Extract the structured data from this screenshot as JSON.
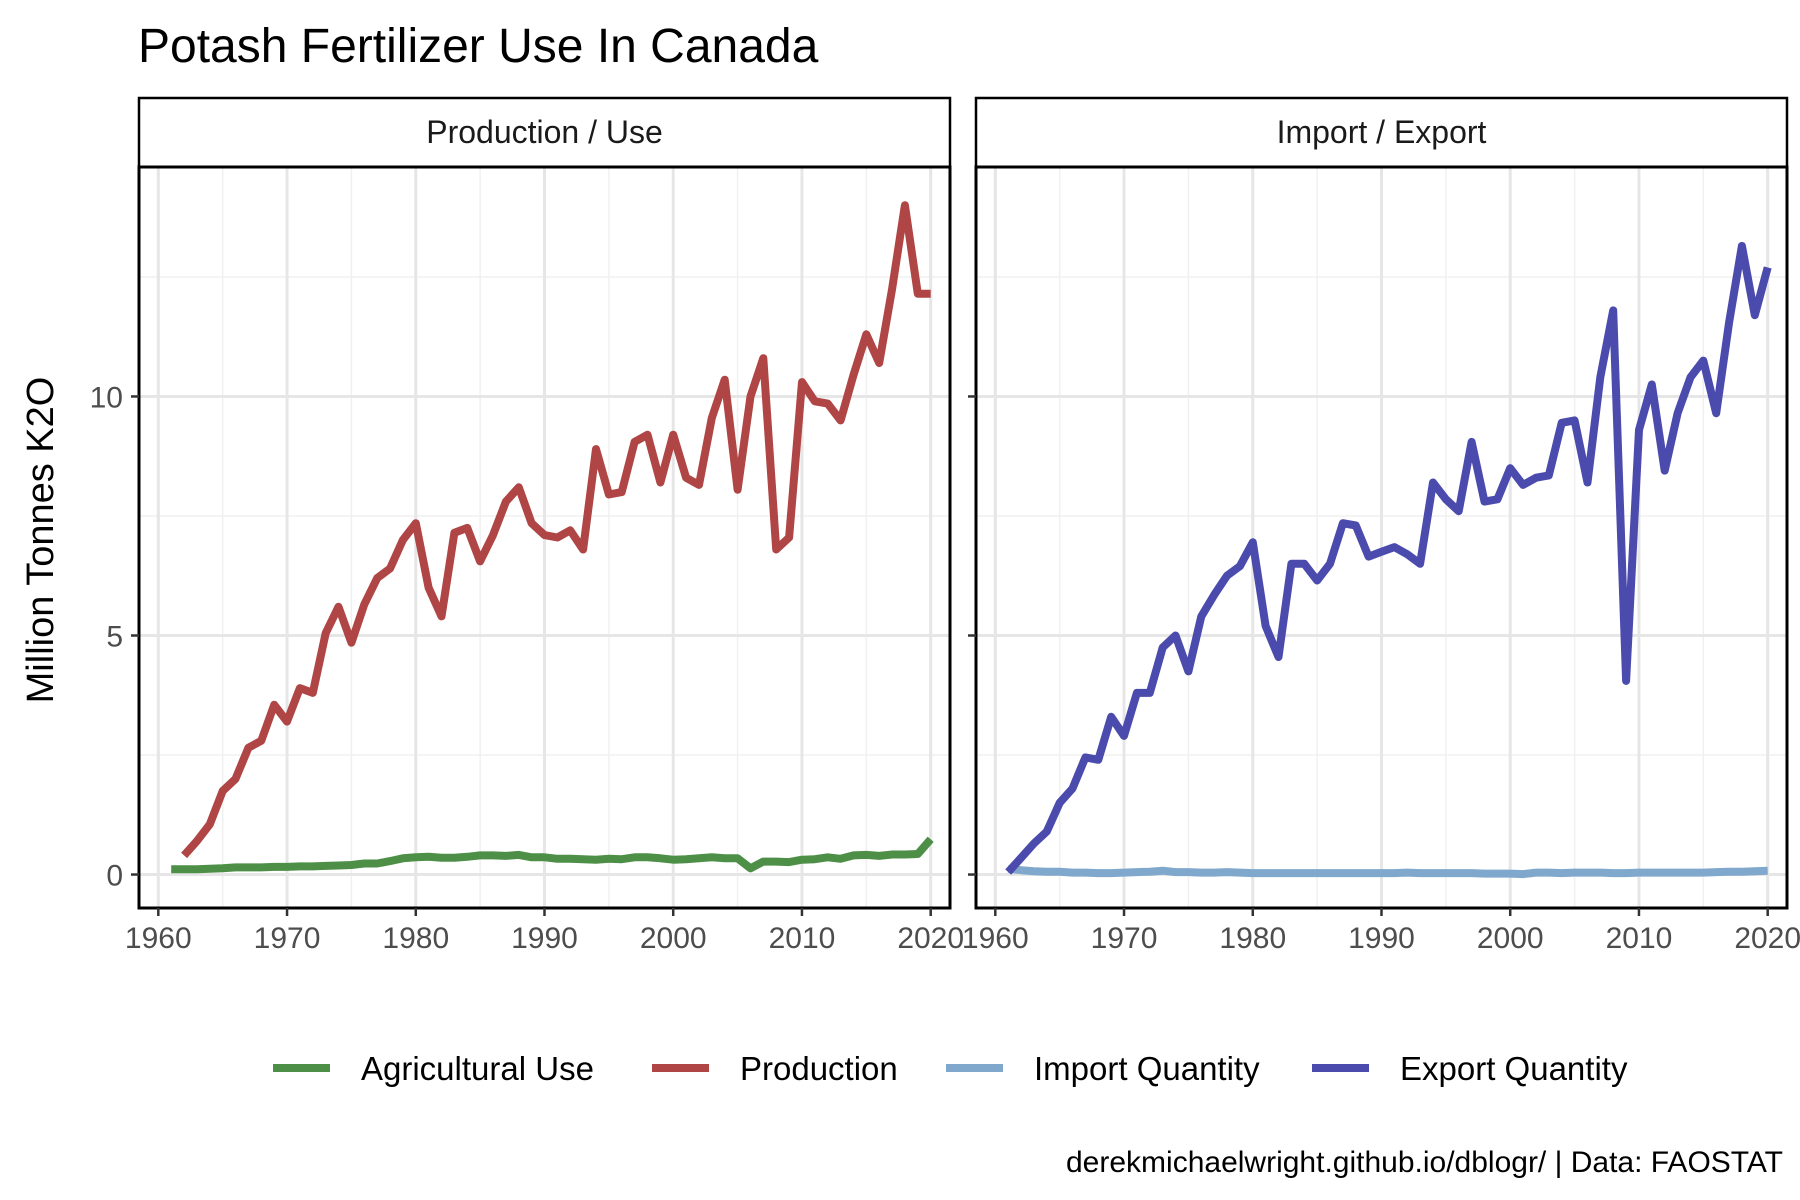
{
  "chart_data": {
    "type": "line",
    "title": "Potash Fertilizer Use In Canada",
    "ylabel": "Million Tonnes K2O",
    "caption": "derekmichaelwright.github.io/dblogr/ | Data: FAOSTAT",
    "xlim": [
      1958.5,
      2021.5
    ],
    "ylim": [
      -0.7,
      14.8
    ],
    "x_ticks": [
      1960,
      1970,
      1980,
      1990,
      2000,
      2010,
      2020
    ],
    "x_tick_labels": [
      "1960",
      "1970",
      "1980",
      "1990",
      "2000",
      "2010",
      "2020"
    ],
    "y_ticks": [
      0,
      5,
      10
    ],
    "y_tick_labels": [
      "0",
      "5",
      "10"
    ],
    "grid": true,
    "legend_position": "bottom",
    "legend": [
      {
        "name": "Agricultural Use",
        "color": "#4d8f47"
      },
      {
        "name": "Production",
        "color": "#b04545"
      },
      {
        "name": "Import Quantity",
        "color": "#7fa8cc"
      },
      {
        "name": "Export Quantity",
        "color": "#4b4bae"
      }
    ],
    "panels": [
      {
        "label": "Production / Use",
        "series": [
          {
            "name": "Agricultural Use",
            "color": "#4d8f47",
            "x": [
              1961,
              1962,
              1963,
              1964,
              1965,
              1966,
              1967,
              1968,
              1969,
              1970,
              1971,
              1972,
              1973,
              1974,
              1975,
              1976,
              1977,
              1978,
              1979,
              1980,
              1981,
              1982,
              1983,
              1984,
              1985,
              1986,
              1987,
              1988,
              1989,
              1990,
              1991,
              1992,
              1993,
              1994,
              1995,
              1996,
              1997,
              1998,
              1999,
              2000,
              2001,
              2002,
              2003,
              2004,
              2005,
              2006,
              2007,
              2008,
              2009,
              2010,
              2011,
              2012,
              2013,
              2014,
              2015,
              2016,
              2017,
              2018,
              2019,
              2020
            ],
            "values": [
              0.11,
              0.11,
              0.11,
              0.12,
              0.13,
              0.15,
              0.15,
              0.15,
              0.16,
              0.16,
              0.17,
              0.17,
              0.18,
              0.19,
              0.2,
              0.23,
              0.23,
              0.28,
              0.34,
              0.36,
              0.37,
              0.35,
              0.35,
              0.37,
              0.4,
              0.4,
              0.39,
              0.41,
              0.36,
              0.36,
              0.33,
              0.33,
              0.32,
              0.31,
              0.33,
              0.32,
              0.36,
              0.36,
              0.34,
              0.31,
              0.32,
              0.34,
              0.36,
              0.34,
              0.34,
              0.13,
              0.27,
              0.27,
              0.26,
              0.31,
              0.32,
              0.36,
              0.33,
              0.4,
              0.41,
              0.39,
              0.42,
              0.42,
              0.43,
              0.74
            ]
          },
          {
            "name": "Production",
            "color": "#b04545",
            "x": [
              1962,
              1963,
              1964,
              1965,
              1966,
              1967,
              1968,
              1969,
              1970,
              1971,
              1972,
              1973,
              1974,
              1975,
              1976,
              1977,
              1978,
              1979,
              1980,
              1981,
              1982,
              1983,
              1984,
              1985,
              1986,
              1987,
              1988,
              1989,
              1990,
              1991,
              1992,
              1993,
              1994,
              1995,
              1996,
              1997,
              1998,
              1999,
              2000,
              2001,
              2002,
              2003,
              2004,
              2005,
              2006,
              2007,
              2008,
              2009,
              2010,
              2011,
              2012,
              2013,
              2014,
              2015,
              2016,
              2017,
              2018,
              2019,
              2020
            ],
            "values": [
              0.4,
              0.7,
              1.05,
              1.75,
              2.0,
              2.65,
              2.8,
              3.55,
              3.2,
              3.9,
              3.8,
              5.05,
              5.6,
              4.85,
              5.65,
              6.2,
              6.4,
              7.0,
              7.35,
              6.0,
              5.4,
              7.15,
              7.25,
              6.55,
              7.1,
              7.8,
              8.1,
              7.35,
              7.1,
              7.05,
              7.2,
              6.8,
              8.9,
              7.95,
              8.0,
              9.05,
              9.2,
              8.2,
              9.2,
              8.3,
              8.15,
              9.55,
              10.35,
              8.05,
              10.0,
              10.8,
              6.8,
              7.05,
              10.3,
              9.9,
              9.85,
              9.5,
              10.45,
              11.3,
              10.7,
              12.25,
              14.0,
              12.15,
              12.15
            ]
          }
        ]
      },
      {
        "label": "Import / Export",
        "series": [
          {
            "name": "Import Quantity",
            "color": "#7fa8cc",
            "x": [
              1961,
              1962,
              1963,
              1964,
              1965,
              1966,
              1967,
              1968,
              1969,
              1970,
              1971,
              1972,
              1973,
              1974,
              1975,
              1976,
              1977,
              1978,
              1979,
              1980,
              1981,
              1982,
              1983,
              1984,
              1985,
              1986,
              1987,
              1988,
              1989,
              1990,
              1991,
              1992,
              1993,
              1994,
              1995,
              1996,
              1997,
              1998,
              1999,
              2000,
              2001,
              2002,
              2003,
              2004,
              2005,
              2006,
              2007,
              2008,
              2009,
              2010,
              2011,
              2012,
              2013,
              2014,
              2015,
              2016,
              2017,
              2018,
              2019,
              2020
            ],
            "values": [
              0.12,
              0.09,
              0.07,
              0.06,
              0.06,
              0.04,
              0.04,
              0.03,
              0.03,
              0.04,
              0.05,
              0.06,
              0.08,
              0.05,
              0.05,
              0.04,
              0.04,
              0.05,
              0.04,
              0.03,
              0.03,
              0.03,
              0.03,
              0.03,
              0.03,
              0.03,
              0.03,
              0.03,
              0.03,
              0.03,
              0.03,
              0.04,
              0.03,
              0.03,
              0.03,
              0.03,
              0.03,
              0.02,
              0.02,
              0.02,
              0.01,
              0.04,
              0.04,
              0.03,
              0.04,
              0.04,
              0.04,
              0.03,
              0.03,
              0.04,
              0.04,
              0.04,
              0.04,
              0.04,
              0.04,
              0.05,
              0.06,
              0.06,
              0.07,
              0.08
            ]
          },
          {
            "name": "Export Quantity",
            "color": "#4b4bae",
            "x": [
              1961,
              1962,
              1963,
              1964,
              1965,
              1966,
              1967,
              1968,
              1969,
              1970,
              1971,
              1972,
              1973,
              1974,
              1975,
              1976,
              1977,
              1978,
              1979,
              1980,
              1981,
              1982,
              1983,
              1984,
              1985,
              1986,
              1987,
              1988,
              1989,
              1990,
              1991,
              1992,
              1993,
              1994,
              1995,
              1996,
              1997,
              1998,
              1999,
              2000,
              2001,
              2002,
              2003,
              2004,
              2005,
              2006,
              2007,
              2008,
              2009,
              2010,
              2011,
              2012,
              2013,
              2014,
              2015,
              2016,
              2017,
              2018,
              2019,
              2020
            ],
            "values": [
              0.05,
              0.35,
              0.65,
              0.9,
              1.5,
              1.8,
              2.45,
              2.4,
              3.3,
              2.9,
              3.8,
              3.8,
              4.75,
              5.0,
              4.25,
              5.4,
              5.85,
              6.25,
              6.45,
              6.95,
              5.2,
              4.55,
              6.5,
              6.5,
              6.15,
              6.5,
              7.35,
              7.3,
              6.65,
              6.75,
              6.85,
              6.7,
              6.5,
              8.2,
              7.85,
              7.6,
              9.05,
              7.8,
              7.85,
              8.5,
              8.15,
              8.3,
              8.35,
              9.45,
              9.5,
              8.2,
              10.4,
              11.8,
              4.05,
              9.3,
              10.25,
              8.45,
              9.65,
              10.4,
              10.75,
              9.65,
              11.55,
              13.15,
              11.7,
              12.7
            ]
          }
        ]
      }
    ]
  }
}
